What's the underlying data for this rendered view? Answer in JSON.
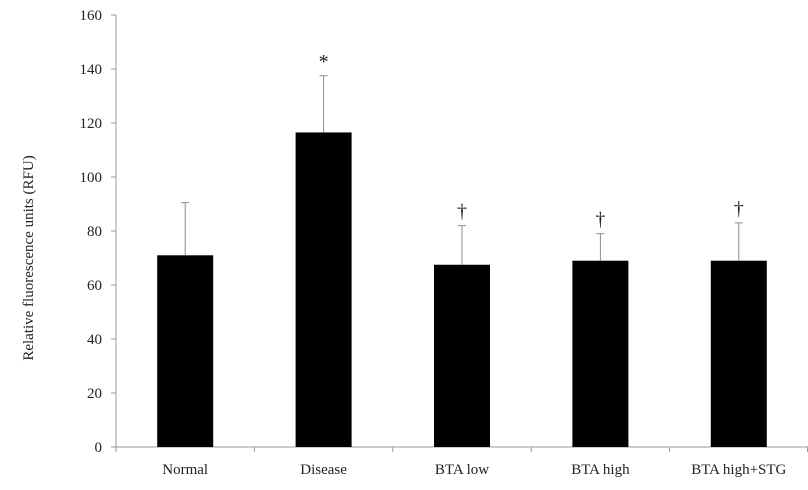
{
  "chart_data": {
    "type": "bar",
    "title": "",
    "xlabel": "",
    "ylabel": "Relative fluorescence units (RFU)",
    "ylim": [
      0,
      160
    ],
    "yticks": [
      0,
      20,
      40,
      60,
      80,
      100,
      120,
      140,
      160
    ],
    "grid": false,
    "legend": "none",
    "categories": [
      "Normal",
      "Disease",
      "BTA low",
      "BTA high",
      "BTA high+STG"
    ],
    "values": [
      71,
      116.5,
      67.5,
      69,
      69
    ],
    "error_upper": [
      90.5,
      137.5,
      82,
      79,
      83
    ],
    "annotations": [
      "",
      "*",
      "†",
      "†",
      "†"
    ],
    "colors": {
      "bar": "#000000",
      "axis": "#999999",
      "error_bar": "#8c8c8c"
    }
  }
}
